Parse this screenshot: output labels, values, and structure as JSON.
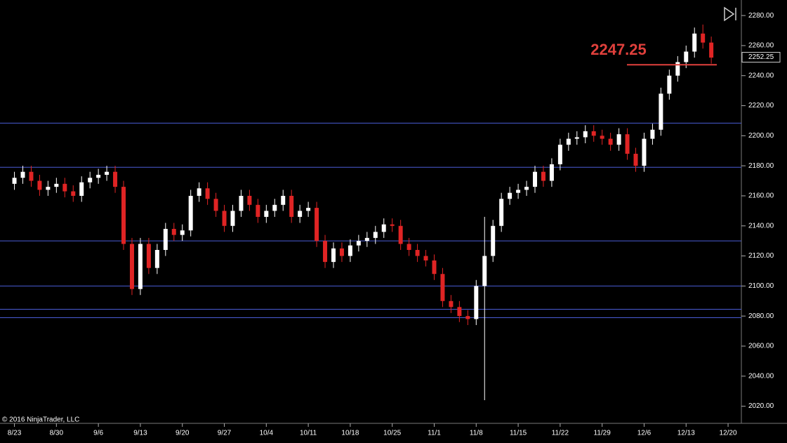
{
  "chart_data": {
    "type": "candlestick",
    "watermark": "© 2016 NinjaTrader, LLC",
    "x": [
      0,
      1,
      2,
      3,
      4,
      5,
      6,
      7,
      8,
      9,
      10,
      11,
      12,
      13,
      14,
      15,
      16,
      17,
      18,
      19,
      20,
      21,
      22,
      23,
      24,
      25,
      26,
      27,
      28,
      29,
      30,
      31,
      32,
      33,
      34,
      35,
      36,
      37,
      38,
      39,
      40,
      41,
      42,
      43,
      44,
      45,
      46,
      47,
      48,
      49,
      50,
      51,
      52,
      53,
      54,
      55,
      56,
      57,
      58,
      59,
      60,
      61,
      62,
      63,
      64,
      65,
      66,
      67,
      68,
      69,
      70,
      71,
      72,
      73,
      74,
      75,
      76,
      77,
      78,
      79,
      80,
      81,
      82,
      83
    ],
    "open": [
      2168,
      2172,
      2176,
      2170,
      2164,
      2166,
      2168,
      2163,
      2160,
      2169,
      2172,
      2174,
      2176,
      2166,
      2128,
      2098,
      2128,
      2112,
      2124,
      2138,
      2134,
      2137,
      2160,
      2165,
      2158,
      2150,
      2140,
      2150,
      2160,
      2154,
      2146,
      2150,
      2154,
      2160,
      2146,
      2150,
      2152,
      2130,
      2116,
      2125,
      2120,
      2127,
      2130,
      2132,
      2136,
      2141,
      2140,
      2128,
      2124,
      2120,
      2117,
      2108,
      2090,
      2086,
      2080,
      2078,
      2100,
      2120,
      2140,
      2158,
      2162,
      2164,
      2166,
      2176,
      2170,
      2181,
      2194,
      2198,
      2199,
      2203,
      2200,
      2198,
      2194,
      2201,
      2188,
      2180,
      2198,
      2204,
      2228,
      2240,
      2249,
      2256,
      2268,
      2262
    ],
    "high": [
      2176,
      2180,
      2180,
      2174,
      2170,
      2172,
      2172,
      2167,
      2173,
      2176,
      2178,
      2180,
      2180,
      2170,
      2132,
      2132,
      2132,
      2128,
      2142,
      2142,
      2141,
      2164,
      2169,
      2169,
      2162,
      2154,
      2154,
      2164,
      2164,
      2158,
      2154,
      2158,
      2164,
      2164,
      2154,
      2156,
      2156,
      2134,
      2129,
      2129,
      2131,
      2134,
      2136,
      2140,
      2145,
      2145,
      2144,
      2132,
      2128,
      2124,
      2121,
      2112,
      2094,
      2090,
      2084,
      2104,
      2146,
      2144,
      2162,
      2166,
      2168,
      2170,
      2180,
      2180,
      2185,
      2198,
      2202,
      2203,
      2207,
      2207,
      2204,
      2202,
      2205,
      2205,
      2192,
      2202,
      2208,
      2232,
      2244,
      2253,
      2260,
      2272,
      2274,
      2266
    ],
    "low": [
      2164,
      2168,
      2166,
      2160,
      2160,
      2162,
      2159,
      2156,
      2156,
      2165,
      2168,
      2170,
      2162,
      2124,
      2094,
      2094,
      2108,
      2108,
      2120,
      2130,
      2130,
      2133,
      2156,
      2154,
      2146,
      2136,
      2136,
      2146,
      2150,
      2142,
      2142,
      2146,
      2150,
      2142,
      2142,
      2146,
      2126,
      2112,
      2112,
      2116,
      2116,
      2123,
      2126,
      2128,
      2132,
      2136,
      2124,
      2120,
      2116,
      2113,
      2104,
      2086,
      2082,
      2076,
      2074,
      2074,
      2024,
      2116,
      2136,
      2154,
      2158,
      2160,
      2162,
      2166,
      2166,
      2177,
      2190,
      2194,
      2195,
      2196,
      2194,
      2190,
      2190,
      2184,
      2176,
      2176,
      2194,
      2200,
      2224,
      2236,
      2245,
      2252,
      2258,
      2248
    ],
    "close": [
      2172,
      2176,
      2170,
      2164,
      2166,
      2168,
      2163,
      2160,
      2169,
      2172,
      2174,
      2176,
      2166,
      2128,
      2098,
      2128,
      2112,
      2124,
      2138,
      2134,
      2137,
      2160,
      2165,
      2158,
      2150,
      2140,
      2150,
      2160,
      2154,
      2146,
      2150,
      2154,
      2160,
      2146,
      2150,
      2152,
      2130,
      2116,
      2125,
      2120,
      2127,
      2130,
      2132,
      2136,
      2141,
      2140,
      2128,
      2124,
      2120,
      2117,
      2108,
      2090,
      2086,
      2080,
      2078,
      2100,
      2120,
      2140,
      2158,
      2162,
      2164,
      2166,
      2176,
      2170,
      2181,
      2194,
      2198,
      2199,
      2203,
      2200,
      2198,
      2194,
      2201,
      2188,
      2180,
      2198,
      2204,
      2228,
      2240,
      2249,
      2256,
      2268,
      2262,
      2252
    ],
    "up_color": "#ffffff",
    "down_color": "#e02424",
    "levels": [
      2208.4,
      2179,
      2130,
      2100,
      2084.5,
      2078.9
    ],
    "level_color": "#4a5cd6",
    "marked_level": 2247.25,
    "marked_color": "#e0403c",
    "last_price": 2252.25,
    "xlim": [
      -1.3,
      86.5
    ],
    "xticks": [
      {
        "value": 0,
        "label": "8/23"
      },
      {
        "value": 5,
        "label": "8/30"
      },
      {
        "value": 10,
        "label": "9/6"
      },
      {
        "value": 15,
        "label": "9/13"
      },
      {
        "value": 20,
        "label": "9/20"
      },
      {
        "value": 25,
        "label": "9/27"
      },
      {
        "value": 30,
        "label": "10/4"
      },
      {
        "value": 35,
        "label": "10/11"
      },
      {
        "value": 40,
        "label": "10/18"
      },
      {
        "value": 45,
        "label": "10/25"
      },
      {
        "value": 50,
        "label": "11/1"
      },
      {
        "value": 55,
        "label": "11/8"
      },
      {
        "value": 60,
        "label": "11/15"
      },
      {
        "value": 65,
        "label": "11/22"
      },
      {
        "value": 70,
        "label": "11/29"
      },
      {
        "value": 75,
        "label": "12/6"
      },
      {
        "value": 80,
        "label": "12/13"
      },
      {
        "value": 85,
        "label": "12/20"
      }
    ],
    "ylim": [
      2010,
      2288
    ],
    "yticks": [
      {
        "value": 2020,
        "label": "2020.00"
      },
      {
        "value": 2040,
        "label": "2040.00"
      },
      {
        "value": 2060,
        "label": "2060.00"
      },
      {
        "value": 2080,
        "label": "2080.00"
      },
      {
        "value": 2100,
        "label": "2100.00"
      },
      {
        "value": 2120,
        "label": "2120.00"
      },
      {
        "value": 2140,
        "label": "2140.00"
      },
      {
        "value": 2160,
        "label": "2160.00"
      },
      {
        "value": 2180,
        "label": "2180.00"
      },
      {
        "value": 2200,
        "label": "2200.00"
      },
      {
        "value": 2220,
        "label": "2220.00"
      },
      {
        "value": 2240,
        "label": "2240.00"
      },
      {
        "value": 2260,
        "label": "2260.00"
      },
      {
        "value": 2280,
        "label": "2280.00"
      }
    ]
  }
}
